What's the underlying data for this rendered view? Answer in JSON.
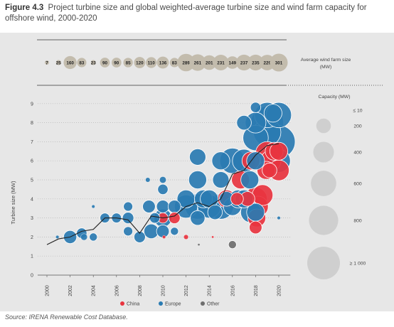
{
  "figure": {
    "number": "Figure 4.3",
    "title": "Project turbine size and global weighted-average turbine size and wind farm capacity for offshore wind, 2000-2020",
    "source": "Source: IRENA Renewable Cost Database."
  },
  "chart_data": {
    "type": "scatter",
    "xlabel": "",
    "ylabel": "Turbine size (MW)",
    "x_ticks": [
      2000,
      2002,
      2004,
      2006,
      2008,
      2010,
      2012,
      2014,
      2016,
      2018,
      2020
    ],
    "y_ticks": [
      0,
      1,
      2,
      3,
      4,
      5,
      6,
      7,
      8,
      9
    ],
    "xlim": [
      1999.2,
      2021.0
    ],
    "ylim": [
      0,
      9.3
    ],
    "grid": true,
    "legend_position": "bottom-center",
    "colors": {
      "China": "#e8343f",
      "Europe": "#2a7bb2",
      "Other": "#6e6e6e",
      "average_line": "#222222"
    },
    "average_farm_label": "Average wind farm size (MW)",
    "average_farm_size_mw": [
      {
        "x": 2000,
        "label": "7"
      },
      {
        "x": 2001,
        "label": "25"
      },
      {
        "x": 2002,
        "label": "160"
      },
      {
        "x": 2003,
        "label": "83"
      },
      {
        "x": 2004,
        "label": "23"
      },
      {
        "x": 2005,
        "label": "90"
      },
      {
        "x": 2006,
        "label": "90"
      },
      {
        "x": 2007,
        "label": "85"
      },
      {
        "x": 2008,
        "label": "120"
      },
      {
        "x": 2009,
        "label": "110"
      },
      {
        "x": 2010,
        "label": "136"
      },
      {
        "x": 2011,
        "label": "83"
      },
      {
        "x": 2012,
        "label": "289"
      },
      {
        "x": 2013,
        "label": "261"
      },
      {
        "x": 2014,
        "label": "201"
      },
      {
        "x": 2015,
        "label": "231"
      },
      {
        "x": 2016,
        "label": "149"
      },
      {
        "x": 2017,
        "label": "237"
      },
      {
        "x": 2018,
        "label": "235"
      },
      {
        "x": 2019,
        "label": "229"
      },
      {
        "x": 2020,
        "label": "301"
      }
    ],
    "weighted_average_turbine_size_mw": [
      [
        2000,
        1.6
      ],
      [
        2001,
        1.9
      ],
      [
        2002,
        2.0
      ],
      [
        2003,
        2.3
      ],
      [
        2004,
        2.4
      ],
      [
        2005,
        3.0
      ],
      [
        2006,
        3.0
      ],
      [
        2007,
        2.9
      ],
      [
        2008,
        2.2
      ],
      [
        2009,
        3.1
      ],
      [
        2010,
        3.0
      ],
      [
        2011,
        3.1
      ],
      [
        2012,
        3.6
      ],
      [
        2013,
        3.8
      ],
      [
        2014,
        3.6
      ],
      [
        2015,
        4.0
      ],
      [
        2016,
        5.3
      ],
      [
        2017,
        5.5
      ],
      [
        2018,
        6.3
      ],
      [
        2019,
        6.8
      ],
      [
        2020,
        6.9
      ]
    ],
    "series": [
      {
        "name": "China",
        "points": [
          {
            "x": 2010,
            "y": 3.0,
            "cap": 100
          },
          {
            "x": 2011,
            "y": 3.0,
            "cap": 120
          },
          {
            "x": 2010.1,
            "y": 2.0,
            "cap": 10
          },
          {
            "x": 2012,
            "y": 2.0,
            "cap": 20
          },
          {
            "x": 2014.3,
            "y": 2.0,
            "cap": 5
          },
          {
            "x": 2015.5,
            "y": 4.0,
            "cap": 300
          },
          {
            "x": 2016.4,
            "y": 4.0,
            "cap": 150
          },
          {
            "x": 2016.7,
            "y": 5.0,
            "cap": 300
          },
          {
            "x": 2017.3,
            "y": 4.0,
            "cap": 200
          },
          {
            "x": 2017.6,
            "y": 6.0,
            "cap": 300
          },
          {
            "x": 2018.0,
            "y": 4.0,
            "cap": 500
          },
          {
            "x": 2018.1,
            "y": 3.0,
            "cap": 300
          },
          {
            "x": 2018.0,
            "y": 2.5,
            "cap": 150
          },
          {
            "x": 2018.2,
            "y": 3.6,
            "cap": 400
          },
          {
            "x": 2018.6,
            "y": 4.2,
            "cap": 400
          },
          {
            "x": 2018.9,
            "y": 5.5,
            "cap": 300
          },
          {
            "x": 2019.0,
            "y": 6.4,
            "cap": 500
          },
          {
            "x": 2019.3,
            "y": 6.0,
            "cap": 400
          },
          {
            "x": 2019.6,
            "y": 6.5,
            "cap": 300
          },
          {
            "x": 2020.0,
            "y": 6.5,
            "cap": 300
          },
          {
            "x": 2020.0,
            "y": 5.5,
            "cap": 400
          },
          {
            "x": 2019.2,
            "y": 5.5,
            "cap": 200
          }
        ]
      },
      {
        "name": "Europe",
        "points": [
          {
            "x": 2000.9,
            "y": 2.0,
            "cap": 10
          },
          {
            "x": 2002,
            "y": 2.0,
            "cap": 160
          },
          {
            "x": 2003,
            "y": 2.2,
            "cap": 100
          },
          {
            "x": 2003.2,
            "y": 2.0,
            "cap": 40
          },
          {
            "x": 2004,
            "y": 3.6,
            "cap": 10
          },
          {
            "x": 2004,
            "y": 2.0,
            "cap": 60
          },
          {
            "x": 2005,
            "y": 3.0,
            "cap": 90
          },
          {
            "x": 2006,
            "y": 3.0,
            "cap": 90
          },
          {
            "x": 2007,
            "y": 3.0,
            "cap": 120
          },
          {
            "x": 2007,
            "y": 3.6,
            "cap": 80
          },
          {
            "x": 2007,
            "y": 2.3,
            "cap": 80
          },
          {
            "x": 2008,
            "y": 2.0,
            "cap": 120
          },
          {
            "x": 2008.7,
            "y": 5.0,
            "cap": 20
          },
          {
            "x": 2008.8,
            "y": 3.6,
            "cap": 150
          },
          {
            "x": 2009,
            "y": 2.3,
            "cap": 200
          },
          {
            "x": 2009.3,
            "y": 3.0,
            "cap": 100
          },
          {
            "x": 2010,
            "y": 5.0,
            "cap": 40
          },
          {
            "x": 2010,
            "y": 4.5,
            "cap": 100
          },
          {
            "x": 2010,
            "y": 3.6,
            "cap": 150
          },
          {
            "x": 2010,
            "y": 3.0,
            "cap": 300
          },
          {
            "x": 2010,
            "y": 2.3,
            "cap": 150
          },
          {
            "x": 2011,
            "y": 3.6,
            "cap": 150
          },
          {
            "x": 2011,
            "y": 2.3,
            "cap": 60
          },
          {
            "x": 2012,
            "y": 3.6,
            "cap": 500
          },
          {
            "x": 2012,
            "y": 4.0,
            "cap": 300
          },
          {
            "x": 2013,
            "y": 3.6,
            "cap": 600
          },
          {
            "x": 2013,
            "y": 3.0,
            "cap": 200
          },
          {
            "x": 2013,
            "y": 6.2,
            "cap": 250
          },
          {
            "x": 2013,
            "y": 5.0,
            "cap": 300
          },
          {
            "x": 2013.5,
            "y": 4.0,
            "cap": 300
          },
          {
            "x": 2014,
            "y": 3.6,
            "cap": 500
          },
          {
            "x": 2014,
            "y": 4.0,
            "cap": 300
          },
          {
            "x": 2014.5,
            "y": 3.3,
            "cap": 200
          },
          {
            "x": 2015,
            "y": 3.6,
            "cap": 600
          },
          {
            "x": 2015,
            "y": 6.0,
            "cap": 300
          },
          {
            "x": 2015,
            "y": 5.0,
            "cap": 250
          },
          {
            "x": 2015.5,
            "y": 4.0,
            "cap": 200
          },
          {
            "x": 2016,
            "y": 6.0,
            "cap": 600
          },
          {
            "x": 2016,
            "y": 3.6,
            "cap": 300
          },
          {
            "x": 2016.5,
            "y": 4.0,
            "cap": 300
          },
          {
            "x": 2017,
            "y": 8.0,
            "cap": 200
          },
          {
            "x": 2017,
            "y": 6.0,
            "cap": 500
          },
          {
            "x": 2017,
            "y": 4.0,
            "cap": 300
          },
          {
            "x": 2017.6,
            "y": 3.3,
            "cap": 400
          },
          {
            "x": 2017.5,
            "y": 5.0,
            "cap": 300
          },
          {
            "x": 2018,
            "y": 8.8,
            "cap": 100
          },
          {
            "x": 2018,
            "y": 8.0,
            "cap": 400
          },
          {
            "x": 2018,
            "y": 7.2,
            "cap": 600
          },
          {
            "x": 2018,
            "y": 6.0,
            "cap": 300
          },
          {
            "x": 2018,
            "y": 3.3,
            "cap": 300
          },
          {
            "x": 2019,
            "y": 8.4,
            "cap": 600
          },
          {
            "x": 2019,
            "y": 7.5,
            "cap": 700
          },
          {
            "x": 2019,
            "y": 8.0,
            "cap": 1000
          },
          {
            "x": 2019.5,
            "y": 8.5,
            "cap": 300
          },
          {
            "x": 2020,
            "y": 8.4,
            "cap": 600
          },
          {
            "x": 2020,
            "y": 7.0,
            "cap": 1000
          },
          {
            "x": 2020,
            "y": 6.0,
            "cap": 500
          },
          {
            "x": 2020,
            "y": 3.0,
            "cap": 10
          }
        ]
      },
      {
        "name": "Other",
        "points": [
          {
            "x": 2013.1,
            "y": 1.6,
            "cap": 5
          },
          {
            "x": 2016,
            "y": 1.6,
            "cap": 60
          }
        ]
      }
    ],
    "capacity_legend": {
      "title": "Capacity (MW)",
      "entries": [
        {
          "label": "≤ 10",
          "cap": 10
        },
        {
          "label": "200",
          "cap": 200
        },
        {
          "label": "400",
          "cap": 400
        },
        {
          "label": "600",
          "cap": 600
        },
        {
          "label": "800",
          "cap": 800
        },
        {
          "label": "≥ 1 000",
          "cap": 1000
        }
      ]
    }
  }
}
